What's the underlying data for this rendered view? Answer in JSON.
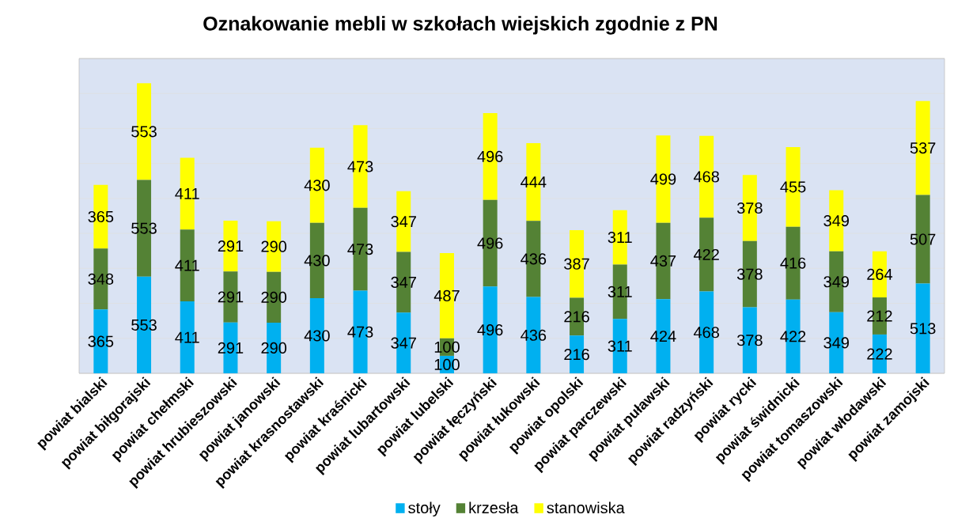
{
  "chart_data": {
    "type": "bar",
    "title": "Oznakowanie mebli w szkołach wiejskich zgodnie z PN",
    "categories": [
      "powiat bialski",
      "powiat biłgorajski",
      "powiat chełmski",
      "powiat hrubieszowski",
      "powiat janowski",
      "powiat krasnostawski",
      "powiat kraśnicki",
      "powiat lubartowski",
      "powiat lubelski",
      "powiat łęczyński",
      "powiat łukowski",
      "powiat opolski",
      "powiat parczewski",
      "powiat puławski",
      "powiat radzyński",
      "powiat rycki",
      "powiat świdnicki",
      "powiat tomaszowski",
      "powiat włodawski",
      "powiat zamojski"
    ],
    "series": [
      {
        "name": "stoły",
        "color": "#00b0f0",
        "values": [
          365,
          553,
          411,
          291,
          290,
          430,
          473,
          347,
          100,
          496,
          436,
          216,
          311,
          424,
          468,
          378,
          422,
          349,
          222,
          513
        ]
      },
      {
        "name": "krzesła",
        "color": "#548235",
        "values": [
          348,
          553,
          411,
          291,
          290,
          430,
          473,
          347,
          100,
          496,
          436,
          216,
          311,
          437,
          422,
          378,
          416,
          349,
          212,
          507
        ]
      },
      {
        "name": "stanowiska",
        "color": "#ffff00",
        "values": [
          365,
          553,
          411,
          291,
          290,
          430,
          473,
          347,
          487,
          496,
          444,
          387,
          311,
          499,
          468,
          378,
          455,
          349,
          264,
          537
        ]
      }
    ],
    "stacked": true,
    "data_labels": true,
    "ylim": [
      0,
      1800
    ],
    "yticks": [
      {
        "value": 0,
        "label": null
      },
      {
        "value": 200,
        "label": null
      },
      {
        "value": 400,
        "label": null
      },
      {
        "value": 600,
        "label": null
      },
      {
        "value": 800,
        "label": null
      },
      {
        "value": 1000,
        "label": null
      },
      {
        "value": 1200,
        "label": null
      },
      {
        "value": 1400,
        "label": null
      },
      {
        "value": 1600,
        "label": null
      },
      {
        "value": 1800,
        "label": null
      }
    ],
    "tick_labels": "x",
    "grid": "y",
    "legend": "bottom"
  }
}
